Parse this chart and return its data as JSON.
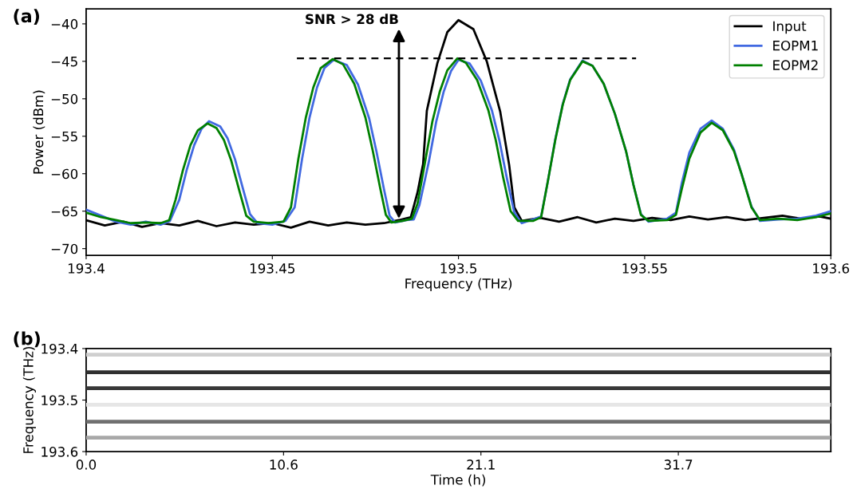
{
  "chart_data": [
    {
      "type": "line",
      "title": "(a)",
      "xlabel": "Frequency (THz)",
      "ylabel": "Power (dBm)",
      "xlim": [
        193.4,
        193.6
      ],
      "xticks": [
        193.4,
        193.45,
        193.5,
        193.55,
        193.6
      ],
      "ylim": [
        -70.9,
        -38
      ],
      "yticks": [
        {
          "value": -70,
          "label": "−70"
        },
        {
          "value": -65,
          "label": "−65"
        },
        {
          "value": -60,
          "label": "−60"
        },
        {
          "value": -55,
          "label": "−55"
        },
        {
          "value": -50,
          "label": "−50"
        },
        {
          "value": -45,
          "label": "−45"
        },
        {
          "value": -40,
          "label": "−40"
        }
      ],
      "grid": false,
      "legend": "top right",
      "marker": "none",
      "line_style": "solid",
      "annotations": [
        {
          "text": "SNR > 28 dB",
          "x": 193.484,
          "y": -66.0
        }
      ],
      "series": [
        {
          "name": "Input",
          "color": "#000000",
          "x": [
            193.4,
            193.405,
            193.41,
            193.415,
            193.42,
            193.425,
            193.43,
            193.435,
            193.44,
            193.445,
            193.45,
            193.455,
            193.46,
            193.465,
            193.47,
            193.475,
            193.48,
            193.484,
            193.4872,
            193.489,
            193.4905,
            193.4915,
            193.4943,
            193.497,
            193.5,
            193.504,
            193.5076,
            193.5112,
            193.5136,
            193.515,
            193.517,
            193.522,
            193.527,
            193.532,
            193.537,
            193.542,
            193.547,
            193.552,
            193.557,
            193.562,
            193.567,
            193.572,
            193.577,
            193.582,
            193.587,
            193.592,
            193.597,
            193.6
          ],
          "values": [
            -66.2,
            -66.9,
            -66.4,
            -67.1,
            -66.6,
            -66.9,
            -66.3,
            -67.0,
            -66.5,
            -66.8,
            -66.6,
            -67.2,
            -66.4,
            -66.9,
            -66.5,
            -66.8,
            -66.6,
            -66.2,
            -65.8,
            -62.5,
            -58.7,
            -51.6,
            -45.3,
            -41.1,
            -39.5,
            -40.7,
            -45.0,
            -51.7,
            -58.8,
            -64.5,
            -66.3,
            -65.9,
            -66.4,
            -65.8,
            -66.5,
            -66.0,
            -66.3,
            -65.9,
            -66.2,
            -65.7,
            -66.1,
            -65.8,
            -66.2,
            -65.9,
            -65.6,
            -66.0,
            -65.7,
            -66.0
          ]
        },
        {
          "name": "EOPM1",
          "color": "#4169e1",
          "x": [
            193.4,
            193.404,
            193.408,
            193.412,
            193.416,
            193.42,
            193.4225,
            193.425,
            193.427,
            193.429,
            193.431,
            193.433,
            193.436,
            193.438,
            193.44,
            193.442,
            193.444,
            193.446,
            193.45,
            193.4535,
            193.456,
            193.458,
            193.46,
            193.462,
            193.464,
            193.4665,
            193.47,
            193.473,
            193.476,
            193.478,
            193.48,
            193.4815,
            193.483,
            193.486,
            193.488,
            193.4895,
            193.492,
            193.494,
            193.496,
            193.498,
            193.5,
            193.503,
            193.506,
            193.509,
            193.511,
            193.513,
            193.515,
            193.517,
            193.52,
            193.5222,
            193.524,
            193.526,
            193.528,
            193.53,
            193.5333,
            193.536,
            193.539,
            193.542,
            193.545,
            193.547,
            193.549,
            193.551,
            193.556,
            193.5584,
            193.56,
            193.562,
            193.565,
            193.568,
            193.571,
            193.574,
            193.576,
            193.5787,
            193.581,
            193.586,
            193.591,
            193.596,
            193.6
          ],
          "values": [
            -64.8,
            -65.6,
            -66.4,
            -66.8,
            -66.4,
            -66.8,
            -66.3,
            -63.5,
            -59.5,
            -56.2,
            -54.0,
            -53.0,
            -53.7,
            -55.3,
            -58.1,
            -61.8,
            -65.4,
            -66.6,
            -66.8,
            -66.3,
            -64.5,
            -58.0,
            -52.5,
            -48.5,
            -45.9,
            -44.8,
            -45.5,
            -48.1,
            -52.6,
            -57.1,
            -62.1,
            -65.6,
            -66.5,
            -66.2,
            -66.1,
            -64.2,
            -58.5,
            -53.1,
            -49.1,
            -46.3,
            -44.8,
            -45.3,
            -47.6,
            -51.6,
            -55.6,
            -60.6,
            -65.2,
            -66.6,
            -66.1,
            -65.7,
            -61.0,
            -55.4,
            -50.7,
            -47.4,
            -44.9,
            -45.6,
            -48.0,
            -52.0,
            -57.0,
            -61.5,
            -65.4,
            -66.4,
            -66.0,
            -65.2,
            -61.2,
            -57.2,
            -54.0,
            -52.9,
            -54.0,
            -56.8,
            -60.0,
            -64.4,
            -66.3,
            -66.1,
            -66.0,
            -65.6,
            -65.0
          ]
        },
        {
          "name": "EOPM2",
          "color": "#008000",
          "x": [
            193.4,
            193.404,
            193.408,
            193.412,
            193.416,
            193.42,
            193.4223,
            193.424,
            193.426,
            193.428,
            193.43,
            193.4326,
            193.435,
            193.437,
            193.439,
            193.441,
            193.443,
            193.445,
            193.449,
            193.453,
            193.455,
            193.457,
            193.459,
            193.461,
            193.463,
            193.4662,
            193.469,
            193.472,
            193.475,
            193.477,
            193.479,
            193.4805,
            193.482,
            193.485,
            193.4875,
            193.489,
            193.491,
            193.493,
            193.495,
            193.497,
            193.4997,
            193.502,
            193.505,
            193.508,
            193.51,
            193.512,
            193.514,
            193.516,
            193.52,
            193.5222,
            193.524,
            193.526,
            193.528,
            193.53,
            193.5333,
            193.536,
            193.539,
            193.542,
            193.545,
            193.547,
            193.549,
            193.551,
            193.556,
            193.5584,
            193.56,
            193.562,
            193.565,
            193.568,
            193.571,
            193.574,
            193.576,
            193.5787,
            193.581,
            193.586,
            193.591,
            193.596,
            193.6
          ],
          "values": [
            -65.2,
            -65.8,
            -66.2,
            -66.6,
            -66.5,
            -66.6,
            -66.2,
            -63.5,
            -59.5,
            -56.2,
            -54.2,
            -53.3,
            -53.9,
            -55.5,
            -58.3,
            -62.0,
            -65.6,
            -66.4,
            -66.6,
            -66.4,
            -64.5,
            -58.0,
            -52.5,
            -48.5,
            -45.9,
            -44.7,
            -45.4,
            -48.0,
            -52.5,
            -57.0,
            -62.0,
            -65.5,
            -66.5,
            -66.3,
            -66.0,
            -64.0,
            -58.5,
            -53.0,
            -49.0,
            -46.2,
            -44.6,
            -45.2,
            -47.5,
            -51.5,
            -55.5,
            -60.5,
            -65.0,
            -66.3,
            -66.3,
            -65.8,
            -61.0,
            -55.5,
            -50.8,
            -47.5,
            -45.0,
            -45.6,
            -48.0,
            -52.0,
            -57.0,
            -61.5,
            -65.5,
            -66.3,
            -66.2,
            -65.5,
            -62.0,
            -58.0,
            -54.5,
            -53.2,
            -54.2,
            -57.0,
            -60.0,
            -64.5,
            -66.2,
            -66.0,
            -66.2,
            -65.8,
            -65.3
          ]
        },
        {
          "color": "#000000",
          "line_style": "dashed",
          "x": [
            193.4566,
            193.5477
          ],
          "values": [
            -44.6,
            -44.6
          ]
        }
      ]
    },
    {
      "type": "line",
      "title": "(b)",
      "xlabel": "Time (h)",
      "ylabel": "Frequency (THz)",
      "xlim": [
        0,
        39.8
      ],
      "xticks": [
        {
          "value": 0,
          "label": "0.0"
        },
        {
          "value": 10.55,
          "label": "10.6"
        },
        {
          "value": 21.1,
          "label": "21.1"
        },
        {
          "value": 31.65,
          "label": "31.7"
        }
      ],
      "ylim": [
        193.6,
        193.4
      ],
      "yticks": [
        193.4,
        193.5,
        193.6
      ],
      "line_style": "solid",
      "series": [
        {
          "color": "#cfcfcf",
          "x": [
            0,
            39.8
          ],
          "values": [
            193.412,
            193.412
          ]
        },
        {
          "color": "#303030",
          "x": [
            0,
            39.8
          ],
          "values": [
            193.446,
            193.446
          ]
        },
        {
          "color": "#383838",
          "x": [
            0,
            39.8
          ],
          "values": [
            193.477,
            193.477
          ]
        },
        {
          "color": "#e6e6e6",
          "x": [
            0,
            39.8
          ],
          "values": [
            193.509,
            193.509
          ]
        },
        {
          "color": "#707070",
          "x": [
            0,
            39.8
          ],
          "values": [
            193.542,
            193.542
          ]
        },
        {
          "color": "#a8a8a8",
          "x": [
            0,
            39.8
          ],
          "values": [
            193.573,
            193.573
          ]
        }
      ]
    }
  ]
}
